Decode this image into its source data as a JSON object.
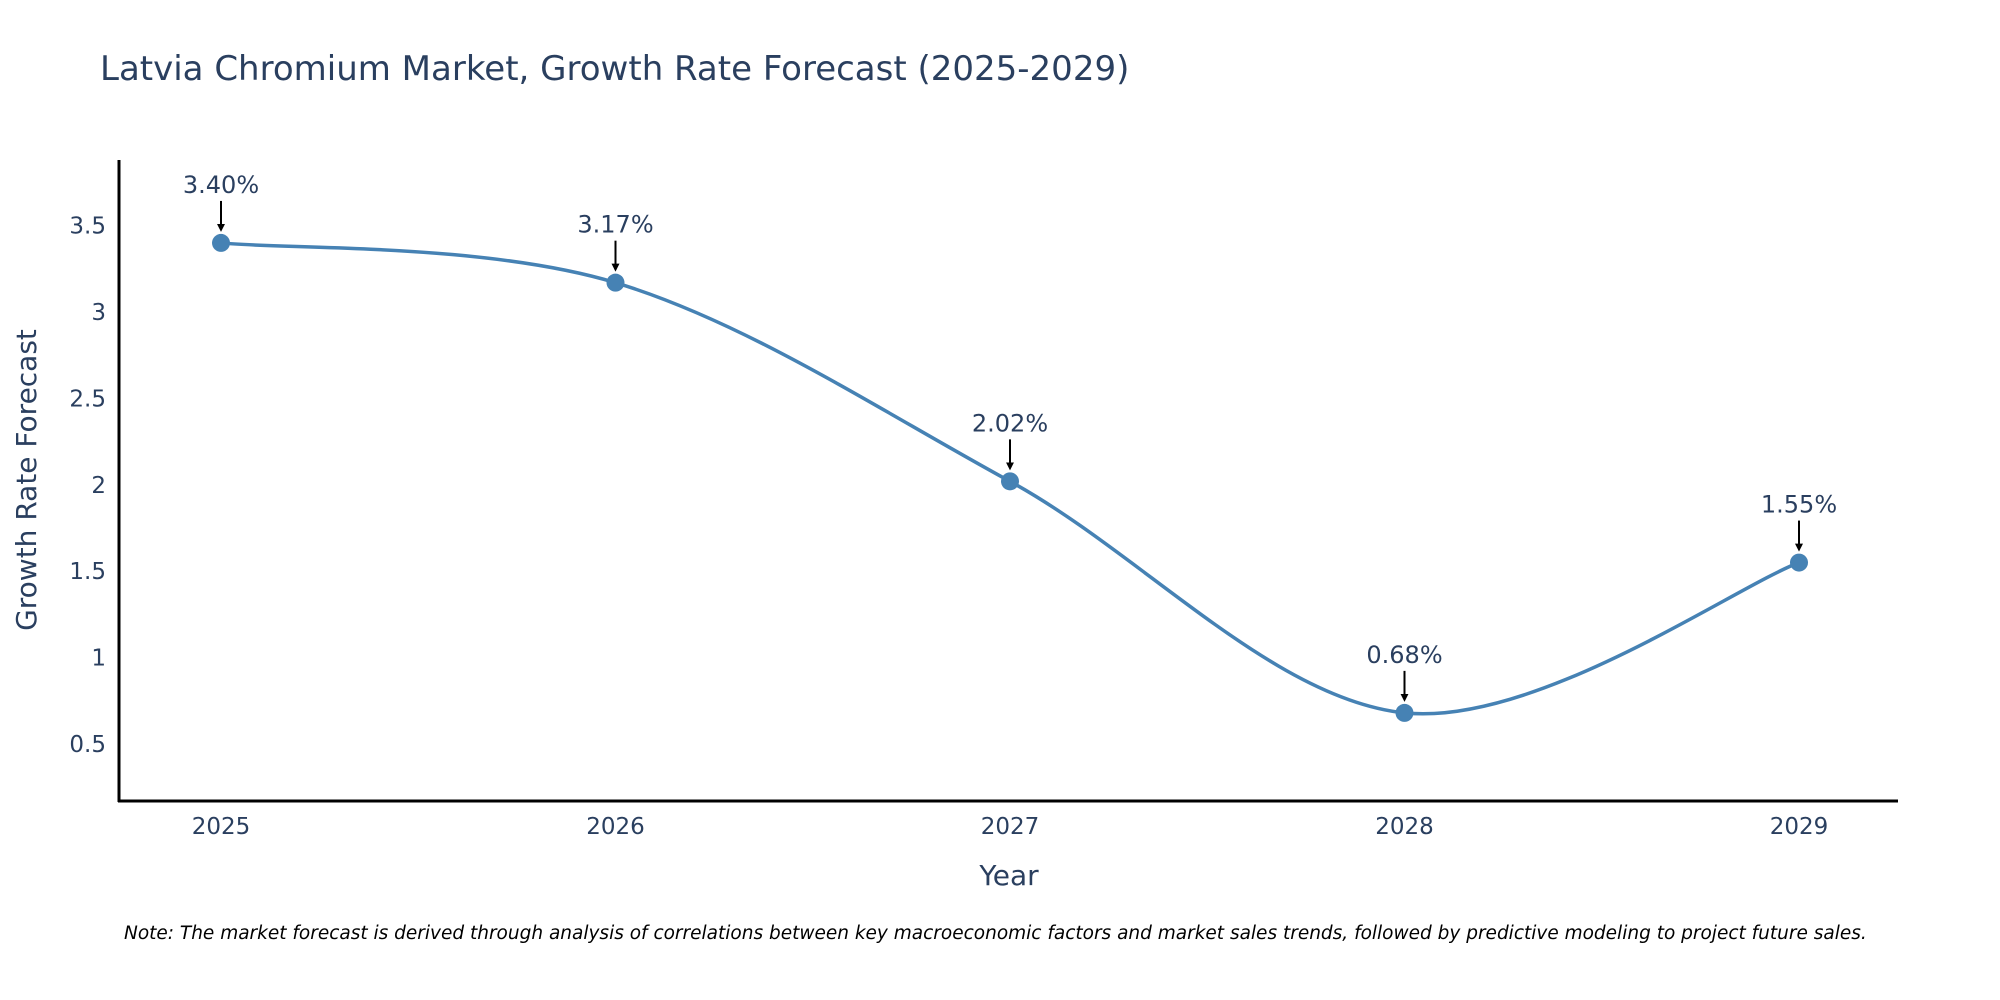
{
  "chart_data": {
    "type": "line",
    "title": "Latvia Chromium Market, Growth Rate Forecast (2025-2029)",
    "xlabel": "Year",
    "ylabel": "Growth Rate Forecast",
    "categories": [
      "2025",
      "2026",
      "2027",
      "2028",
      "2029"
    ],
    "series": [
      {
        "name": "Growth Rate Forecast",
        "values": [
          3.4,
          3.17,
          2.02,
          0.68,
          1.55
        ],
        "labels": [
          "3.40%",
          "3.17%",
          "2.02%",
          "0.68%",
          "1.55%"
        ],
        "color": "#4682b4"
      }
    ],
    "yticks": [
      0.5,
      1,
      1.5,
      2,
      2.5,
      3,
      3.5
    ],
    "ytick_labels": [
      "0.5",
      "1",
      "1.5",
      "2",
      "2.5",
      "3",
      "3.5"
    ],
    "ylim": [
      0.17,
      3.88
    ],
    "line_shape": "spline",
    "grid": false,
    "note": "Note: The market forecast is derived through analysis of correlations between key macroeconomic factors and market sales trends, followed by predictive modeling to project future sales."
  }
}
